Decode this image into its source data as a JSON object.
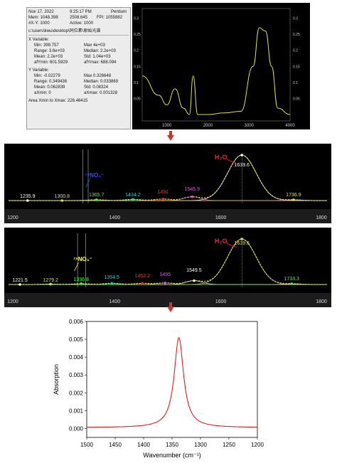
{
  "info_panel": {
    "line1": [
      "Nov 17, 2022",
      "9:25:17 PM",
      "Pentium"
    ],
    "line2": [
      "Mem: 1048.398",
      "2508.645",
      "FPI: 1055882"
    ],
    "line3": [
      "#X-Y: 1000",
      "Active: 1000"
    ],
    "path": "c:\\users\\kwu\\desktop\\同位素\\原始光谱",
    "x_title": "X Variable:",
    "x_rows": [
      [
        "Min: 399.757",
        "Max 4e+03"
      ],
      [
        "Range: 3.6e+03",
        "Median: 2.2e+03"
      ],
      [
        "Mean: 2.2e+03",
        "Std: 1.04e+03"
      ],
      [
        "afYmin: 601.5929",
        "afYmax: 688.094"
      ]
    ],
    "y_title": "Y Variable:",
    "y_rows": [
      [
        "Min: -0.02279",
        "Max 0.326648"
      ],
      [
        "Range: 0.349436",
        "Median: 0.033869"
      ],
      [
        "Mean: 0.062839",
        "Std: 0.08324"
      ],
      [
        "aXmin: 0",
        "aXmax: 0.001328"
      ]
    ],
    "area": "Area Xmin to Xmax: 226.48415"
  },
  "colors": {
    "dark_bg": "#000000",
    "spectrum": "#e0e040",
    "arrow": "#c0392b",
    "absorption": "#e02020",
    "h2o_label": "#ff2020"
  },
  "chart_data": [
    {
      "type": "line",
      "x_ticks": [
        "1000",
        "2000",
        "3000",
        "4000"
      ],
      "y_ticks": [
        "0.05",
        "0.1",
        "0.15",
        "0.2",
        "0.25",
        "0.3"
      ],
      "x": [
        400,
        800,
        1000,
        1200,
        1400,
        1550,
        1640,
        1750,
        2000,
        2400,
        2800,
        3100,
        3250,
        3400,
        3550,
        3700,
        4000
      ],
      "y": [
        0.12,
        0.06,
        0.03,
        0.08,
        0.02,
        0.0,
        0.12,
        0.0,
        0.0,
        0.005,
        0.01,
        0.15,
        0.27,
        0.26,
        0.15,
        0.02,
        0.0
      ],
      "xlim": [
        400,
        4000
      ],
      "ylim": [
        -0.02,
        0.33
      ]
    },
    {
      "type": "line",
      "x_ticks": [
        "1200",
        "1400",
        "1600",
        "1800"
      ],
      "peak_labels": [
        "1235.9",
        "1300.8",
        "1365.7",
        "1434.2",
        "1491",
        "1545.9",
        "1639.6",
        "1736.9"
      ],
      "peak_x": [
        1235.9,
        1300.8,
        1365.7,
        1434.2,
        1491,
        1545.9,
        1639.6,
        1736.9
      ],
      "peak_y": [
        0.0,
        0.0,
        0.002,
        0.003,
        0.004,
        0.01,
        0.12,
        0.002
      ],
      "annotations": [
        "H₂O",
        "¹⁴NO₃⁻"
      ],
      "xlim": [
        1200,
        1800
      ]
    },
    {
      "type": "line",
      "x_ticks": [
        "1200",
        "1400",
        "1600",
        "1800"
      ],
      "peak_labels": [
        "1221.5",
        "1279.2",
        "1336.8",
        "1394.5",
        "1452.2",
        "1495",
        "1549.5",
        "1639.6",
        "1733.3"
      ],
      "peak_x": [
        1221.5,
        1279.2,
        1336.8,
        1394.5,
        1452.2,
        1495,
        1549.5,
        1639.6,
        1733.3
      ],
      "peak_y": [
        0.0,
        0.001,
        0.002,
        0.003,
        0.003,
        0.004,
        0.01,
        0.12,
        0.002
      ],
      "annotations": [
        "H₂O",
        "¹⁵NO₃⁻"
      ],
      "xlim": [
        1200,
        1800
      ]
    },
    {
      "type": "line",
      "xlabel": "Wavenumber (cm⁻¹)",
      "ylabel": "Absorption",
      "xlim": [
        1500,
        1200
      ],
      "ylim": [
        -0.0005,
        0.006
      ],
      "x_ticks": [
        "1500",
        "1450",
        "1400",
        "1350",
        "1300",
        "1250",
        "1200"
      ],
      "y_ticks": [
        "0.000",
        "0.001",
        "0.002",
        "0.003",
        "0.004",
        "0.005",
        "0.006"
      ],
      "peak_center": 1338,
      "peak_height": 0.0051,
      "baseline": 5e-05,
      "half_width": 10
    }
  ]
}
